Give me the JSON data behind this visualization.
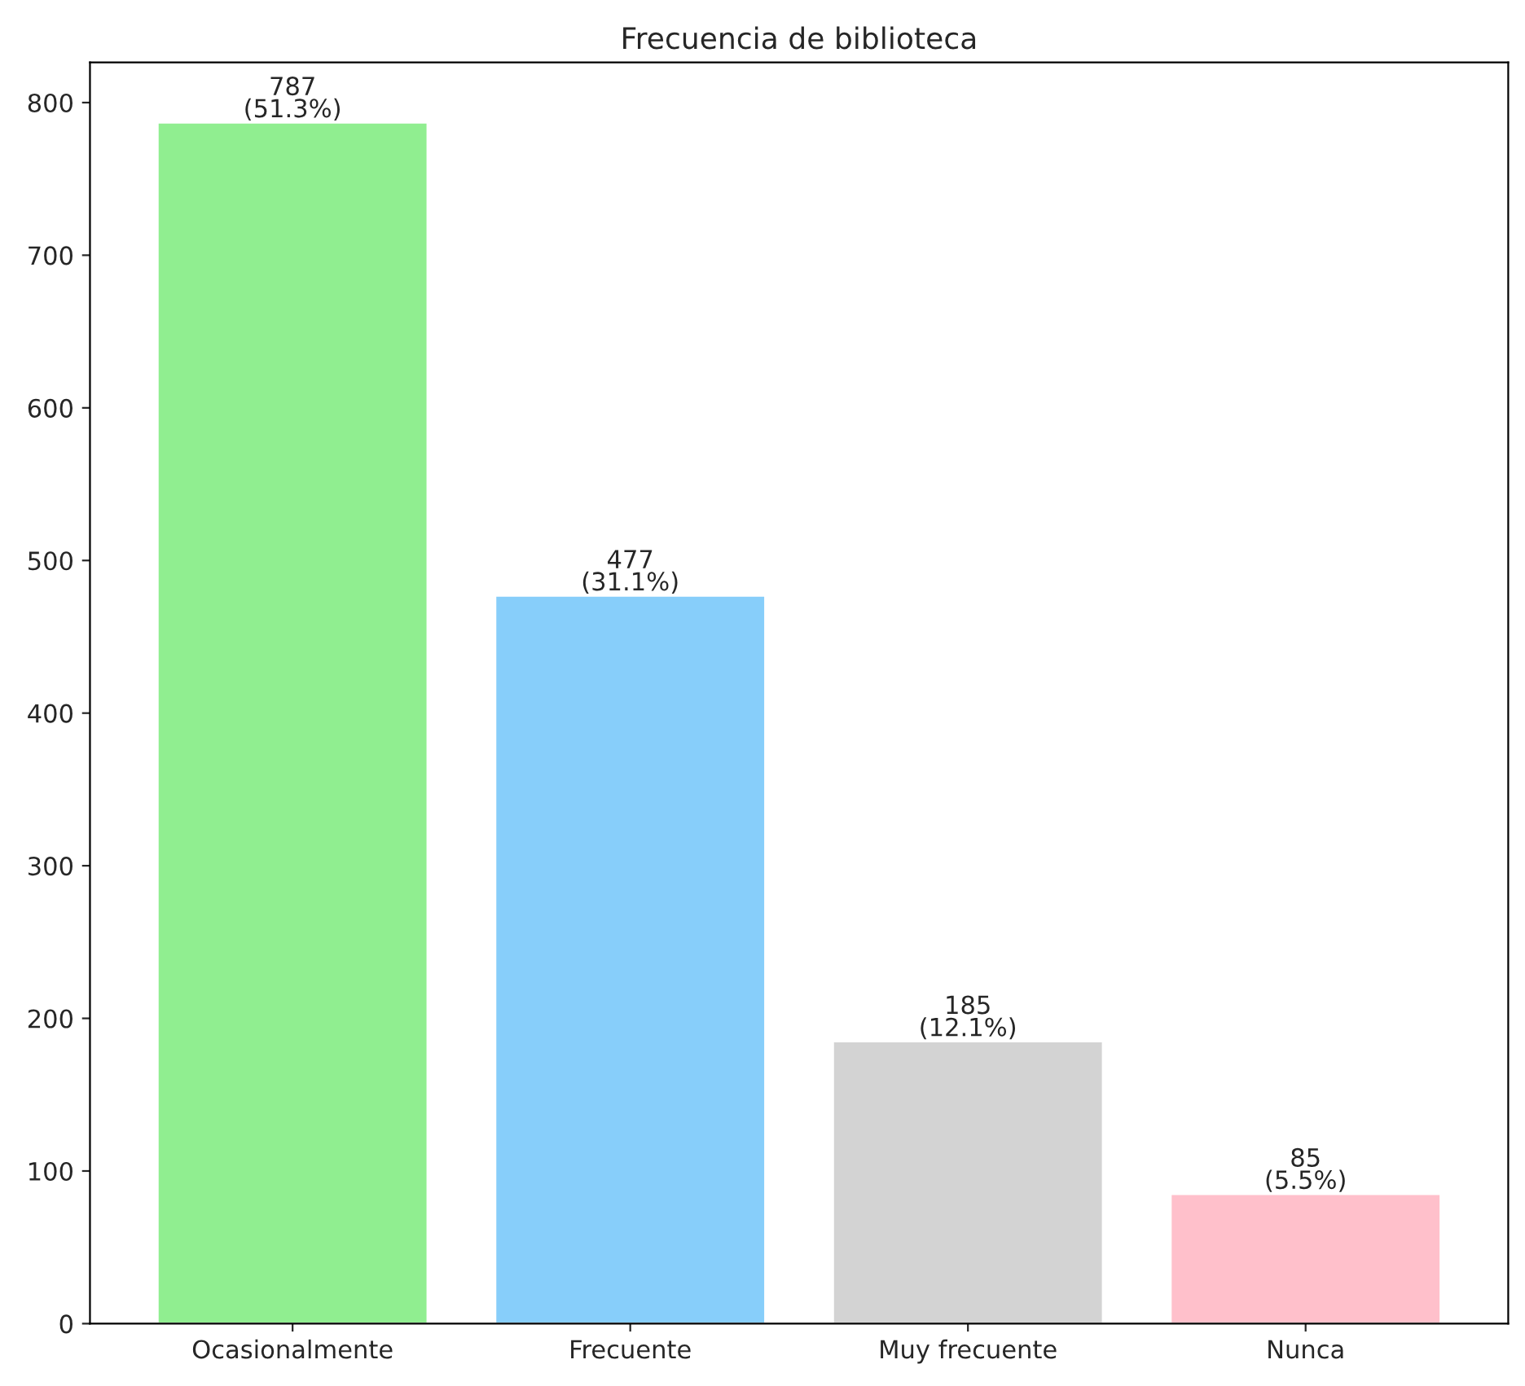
{
  "chart_data": {
    "type": "bar",
    "title": "Frecuencia de biblioteca",
    "categories": [
      "Ocasionalmente",
      "Frecuente",
      "Muy frecuente",
      "Nunca"
    ],
    "values": [
      787,
      477,
      185,
      85
    ],
    "colors": [
      "#90ee90",
      "#87cefa",
      "#d3d3d3",
      "#ffc0cb"
    ],
    "value_labels": [
      "787\n(51.3%)",
      "477\n(31.1%)",
      "185\n(12.1%)",
      "85\n(5.5%)"
    ],
    "ylim": [
      0,
      826.35
    ],
    "yticks": [
      0,
      100,
      200,
      300,
      400,
      500,
      600,
      700,
      800
    ],
    "grid": false,
    "legend": false
  }
}
